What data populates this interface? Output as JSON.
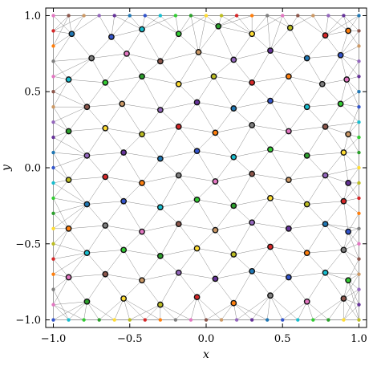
{
  "chart_data": {
    "type": "scatter",
    "title": "",
    "xlabel": "x",
    "ylabel": "y",
    "xlim": [
      -1.05,
      1.05
    ],
    "ylim": [
      -1.05,
      1.05
    ],
    "xticks": [
      -1.0,
      -0.5,
      0.0,
      0.5,
      1.0
    ],
    "yticks": [
      -1.0,
      -0.5,
      0.0,
      0.5,
      1.0
    ],
    "xtick_labels": [
      "−1.0",
      "−0.5",
      "0.0",
      "0.5",
      "1.0"
    ],
    "ytick_labels": [
      "−1.0",
      "−0.5",
      "0.0",
      "0.5",
      "1.0"
    ],
    "grid": false,
    "legend": "none",
    "series": [
      {
        "values_note": "",
        "points": [
          {
            "x": -1.0,
            "y": 1.0
          },
          {
            "x": -0.9,
            "y": 1.0
          },
          {
            "x": -0.8,
            "y": 1.0
          },
          {
            "x": -0.7,
            "y": 1.0
          },
          {
            "x": -0.6,
            "y": 1.0
          },
          {
            "x": -0.5,
            "y": 1.0
          },
          {
            "x": -0.4,
            "y": 1.0
          },
          {
            "x": -0.3,
            "y": 1.0
          },
          {
            "x": -0.2,
            "y": 1.0
          },
          {
            "x": -0.1,
            "y": 1.0
          },
          {
            "x": 0.0,
            "y": 1.0
          },
          {
            "x": 0.1,
            "y": 1.0
          },
          {
            "x": 0.2,
            "y": 1.0
          },
          {
            "x": 0.3,
            "y": 1.0
          },
          {
            "x": 0.4,
            "y": 1.0
          },
          {
            "x": 0.5,
            "y": 1.0
          },
          {
            "x": 0.6,
            "y": 1.0
          },
          {
            "x": 0.7,
            "y": 1.0
          },
          {
            "x": 0.8,
            "y": 1.0
          },
          {
            "x": 0.9,
            "y": 1.0
          },
          {
            "x": 1.0,
            "y": 1.0
          },
          {
            "x": -1.0,
            "y": -1.0
          },
          {
            "x": -0.9,
            "y": -1.0
          },
          {
            "x": -0.8,
            "y": -1.0
          },
          {
            "x": -0.7,
            "y": -1.0
          },
          {
            "x": -0.6,
            "y": -1.0
          },
          {
            "x": -0.5,
            "y": -1.0
          },
          {
            "x": -0.4,
            "y": -1.0
          },
          {
            "x": -0.3,
            "y": -1.0
          },
          {
            "x": -0.2,
            "y": -1.0
          },
          {
            "x": -0.1,
            "y": -1.0
          },
          {
            "x": 0.0,
            "y": -1.0
          },
          {
            "x": 0.1,
            "y": -1.0
          },
          {
            "x": 0.2,
            "y": -1.0
          },
          {
            "x": 0.3,
            "y": -1.0
          },
          {
            "x": 0.4,
            "y": -1.0
          },
          {
            "x": 0.5,
            "y": -1.0
          },
          {
            "x": 0.6,
            "y": -1.0
          },
          {
            "x": 0.7,
            "y": -1.0
          },
          {
            "x": 0.8,
            "y": -1.0
          },
          {
            "x": 0.9,
            "y": -1.0
          },
          {
            "x": 1.0,
            "y": -1.0
          },
          {
            "x": -1.0,
            "y": 0.9
          },
          {
            "x": -1.0,
            "y": 0.8
          },
          {
            "x": -1.0,
            "y": 0.7
          },
          {
            "x": -1.0,
            "y": 0.6
          },
          {
            "x": -1.0,
            "y": 0.5
          },
          {
            "x": -1.0,
            "y": 0.4
          },
          {
            "x": -1.0,
            "y": 0.3
          },
          {
            "x": -1.0,
            "y": 0.2
          },
          {
            "x": -1.0,
            "y": 0.1
          },
          {
            "x": -1.0,
            "y": 0.0
          },
          {
            "x": -1.0,
            "y": -0.1
          },
          {
            "x": -1.0,
            "y": -0.2
          },
          {
            "x": -1.0,
            "y": -0.3
          },
          {
            "x": -1.0,
            "y": -0.4
          },
          {
            "x": -1.0,
            "y": -0.5
          },
          {
            "x": -1.0,
            "y": -0.6
          },
          {
            "x": -1.0,
            "y": -0.7
          },
          {
            "x": -1.0,
            "y": -0.8
          },
          {
            "x": -1.0,
            "y": -0.9
          },
          {
            "x": 1.0,
            "y": 0.9
          },
          {
            "x": 1.0,
            "y": 0.8
          },
          {
            "x": 1.0,
            "y": 0.7
          },
          {
            "x": 1.0,
            "y": 0.6
          },
          {
            "x": 1.0,
            "y": 0.5
          },
          {
            "x": 1.0,
            "y": 0.4
          },
          {
            "x": 1.0,
            "y": 0.3
          },
          {
            "x": 1.0,
            "y": 0.2
          },
          {
            "x": 1.0,
            "y": 0.1
          },
          {
            "x": 1.0,
            "y": 0.0
          },
          {
            "x": 1.0,
            "y": -0.1
          },
          {
            "x": 1.0,
            "y": -0.2
          },
          {
            "x": 1.0,
            "y": -0.3
          },
          {
            "x": 1.0,
            "y": -0.4
          },
          {
            "x": 1.0,
            "y": -0.5
          },
          {
            "x": 1.0,
            "y": -0.6
          },
          {
            "x": 1.0,
            "y": -0.7
          },
          {
            "x": 1.0,
            "y": -0.8
          },
          {
            "x": 1.0,
            "y": -0.9
          },
          {
            "x": -0.88,
            "y": 0.88
          },
          {
            "x": -0.62,
            "y": 0.86
          },
          {
            "x": -0.42,
            "y": 0.91
          },
          {
            "x": -0.18,
            "y": 0.88
          },
          {
            "x": 0.08,
            "y": 0.93
          },
          {
            "x": 0.3,
            "y": 0.88
          },
          {
            "x": 0.55,
            "y": 0.92
          },
          {
            "x": 0.78,
            "y": 0.87
          },
          {
            "x": 0.93,
            "y": 0.9
          },
          {
            "x": -0.75,
            "y": 0.72
          },
          {
            "x": -0.52,
            "y": 0.75
          },
          {
            "x": -0.3,
            "y": 0.7
          },
          {
            "x": -0.05,
            "y": 0.76
          },
          {
            "x": 0.18,
            "y": 0.71
          },
          {
            "x": 0.42,
            "y": 0.77
          },
          {
            "x": 0.66,
            "y": 0.72
          },
          {
            "x": 0.88,
            "y": 0.74
          },
          {
            "x": -0.9,
            "y": 0.58
          },
          {
            "x": -0.66,
            "y": 0.56
          },
          {
            "x": -0.42,
            "y": 0.6
          },
          {
            "x": -0.18,
            "y": 0.55
          },
          {
            "x": 0.05,
            "y": 0.6
          },
          {
            "x": 0.3,
            "y": 0.56
          },
          {
            "x": 0.54,
            "y": 0.6
          },
          {
            "x": 0.76,
            "y": 0.55
          },
          {
            "x": 0.92,
            "y": 0.58
          },
          {
            "x": -0.78,
            "y": 0.4
          },
          {
            "x": -0.55,
            "y": 0.42
          },
          {
            "x": -0.3,
            "y": 0.38
          },
          {
            "x": -0.06,
            "y": 0.43
          },
          {
            "x": 0.18,
            "y": 0.39
          },
          {
            "x": 0.42,
            "y": 0.44
          },
          {
            "x": 0.66,
            "y": 0.4
          },
          {
            "x": 0.88,
            "y": 0.42
          },
          {
            "x": -0.9,
            "y": 0.24
          },
          {
            "x": -0.66,
            "y": 0.26
          },
          {
            "x": -0.42,
            "y": 0.22
          },
          {
            "x": -0.18,
            "y": 0.27
          },
          {
            "x": 0.06,
            "y": 0.23
          },
          {
            "x": 0.3,
            "y": 0.28
          },
          {
            "x": 0.54,
            "y": 0.24
          },
          {
            "x": 0.78,
            "y": 0.27
          },
          {
            "x": 0.93,
            "y": 0.22
          },
          {
            "x": -0.78,
            "y": 0.08
          },
          {
            "x": -0.54,
            "y": 0.1
          },
          {
            "x": -0.3,
            "y": 0.06
          },
          {
            "x": -0.06,
            "y": 0.11
          },
          {
            "x": 0.18,
            "y": 0.07
          },
          {
            "x": 0.42,
            "y": 0.12
          },
          {
            "x": 0.66,
            "y": 0.08
          },
          {
            "x": 0.9,
            "y": 0.1
          },
          {
            "x": -0.9,
            "y": -0.08
          },
          {
            "x": -0.66,
            "y": -0.06
          },
          {
            "x": -0.42,
            "y": -0.1
          },
          {
            "x": -0.18,
            "y": -0.05
          },
          {
            "x": 0.06,
            "y": -0.09
          },
          {
            "x": 0.3,
            "y": -0.04
          },
          {
            "x": 0.54,
            "y": -0.08
          },
          {
            "x": 0.78,
            "y": -0.05
          },
          {
            "x": 0.93,
            "y": -0.1
          },
          {
            "x": -0.78,
            "y": -0.24
          },
          {
            "x": -0.54,
            "y": -0.22
          },
          {
            "x": -0.3,
            "y": -0.26
          },
          {
            "x": -0.06,
            "y": -0.21
          },
          {
            "x": 0.18,
            "y": -0.25
          },
          {
            "x": 0.42,
            "y": -0.2
          },
          {
            "x": 0.66,
            "y": -0.24
          },
          {
            "x": 0.9,
            "y": -0.22
          },
          {
            "x": -0.9,
            "y": -0.4
          },
          {
            "x": -0.66,
            "y": -0.38
          },
          {
            "x": -0.42,
            "y": -0.42
          },
          {
            "x": -0.18,
            "y": -0.37
          },
          {
            "x": 0.06,
            "y": -0.41
          },
          {
            "x": 0.3,
            "y": -0.36
          },
          {
            "x": 0.54,
            "y": -0.4
          },
          {
            "x": 0.78,
            "y": -0.37
          },
          {
            "x": 0.93,
            "y": -0.42
          },
          {
            "x": -0.78,
            "y": -0.56
          },
          {
            "x": -0.54,
            "y": -0.54
          },
          {
            "x": -0.3,
            "y": -0.58
          },
          {
            "x": -0.06,
            "y": -0.53
          },
          {
            "x": 0.18,
            "y": -0.57
          },
          {
            "x": 0.42,
            "y": -0.52
          },
          {
            "x": 0.66,
            "y": -0.56
          },
          {
            "x": 0.9,
            "y": -0.54
          },
          {
            "x": -0.9,
            "y": -0.72
          },
          {
            "x": -0.66,
            "y": -0.7
          },
          {
            "x": -0.42,
            "y": -0.74
          },
          {
            "x": -0.18,
            "y": -0.69
          },
          {
            "x": 0.06,
            "y": -0.73
          },
          {
            "x": 0.3,
            "y": -0.68
          },
          {
            "x": 0.54,
            "y": -0.72
          },
          {
            "x": 0.78,
            "y": -0.69
          },
          {
            "x": 0.93,
            "y": -0.74
          },
          {
            "x": -0.78,
            "y": -0.88
          },
          {
            "x": -0.54,
            "y": -0.86
          },
          {
            "x": -0.3,
            "y": -0.9
          },
          {
            "x": -0.06,
            "y": -0.85
          },
          {
            "x": 0.18,
            "y": -0.89
          },
          {
            "x": 0.42,
            "y": -0.84
          },
          {
            "x": 0.66,
            "y": -0.88
          },
          {
            "x": 0.9,
            "y": -0.86
          }
        ]
      }
    ]
  },
  "colors": {
    "edge": "#8a8a8a",
    "marker_edge": "#111111",
    "axis": "#000000",
    "palette": [
      "#e377c2",
      "#ff7f0e",
      "#bcbd22",
      "#2ca02c",
      "#17becf",
      "#1f77b4",
      "#9467bd",
      "#8c564b",
      "#7f7f7f",
      "#d62728",
      "#ffdd33",
      "#33cc33",
      "#3355cc",
      "#663399",
      "#cc9966"
    ]
  }
}
